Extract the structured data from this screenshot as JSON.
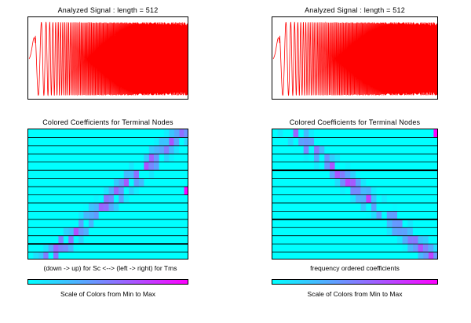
{
  "left_panel": {
    "signal_title": "Analyzed Signal : length = 512",
    "coef_title": "Colored Coefficients for Terminal Nodes",
    "order_caption": "(down -> up) for Sc <--> (left -> right) for Tms",
    "colorbar_caption": "Scale of Colors from Min to Max"
  },
  "right_panel": {
    "signal_title": "Analyzed Signal : length = 512",
    "coef_title": "Colored Coefficients for Terminal Nodes",
    "order_caption": "frequency ordered coefficients",
    "colorbar_caption": "Scale of Colors from Min to Max"
  },
  "colors": {
    "signal": "#ff0000",
    "cell_min": "#00ffff",
    "cell_max": "#ff00ff",
    "row_line": "#000000"
  }
}
